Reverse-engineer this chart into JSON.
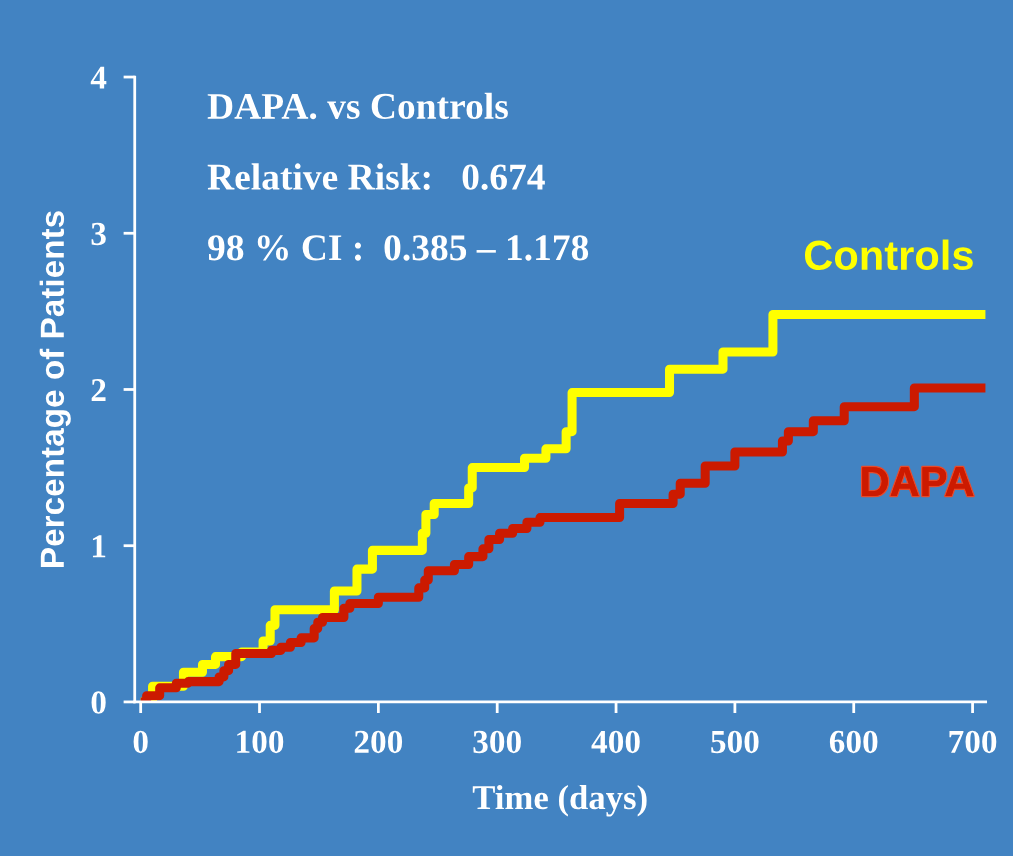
{
  "chart_data": {
    "type": "step",
    "xlabel": "Time (days)",
    "ylabel": "Percentage of Patients",
    "xlim": [
      -5,
      711
    ],
    "xticks": [
      0,
      100,
      200,
      300,
      400,
      500,
      600,
      700
    ],
    "ylim": [
      0,
      4
    ],
    "yticks": [
      0,
      1,
      2,
      3,
      4
    ],
    "grid": false,
    "legend": false,
    "marker": "none",
    "line_style": "solid",
    "annotations": [
      "DAPA. vs Controls",
      "Relative Risk:   0.674",
      "98 % CI :  0.385 – 1.178"
    ],
    "series": [
      {
        "name": "Controls",
        "color": "#ffff00",
        "x": [
          0,
          10,
          36,
          52,
          63,
          85,
          103,
          109,
          113,
          163,
          182,
          195,
          237,
          240,
          247,
          276,
          279,
          323,
          341,
          358,
          363,
          445,
          490,
          532,
          711
        ],
        "values": [
          0,
          0.1,
          0.19,
          0.24,
          0.29,
          0.32,
          0.39,
          0.49,
          0.59,
          0.71,
          0.85,
          0.97,
          1.08,
          1.2,
          1.27,
          1.37,
          1.5,
          1.56,
          1.62,
          1.73,
          1.98,
          2.13,
          2.24,
          2.48,
          2.48
        ]
      },
      {
        "name": "DAPA",
        "color": "#cc1a00",
        "x": [
          0,
          5,
          16,
          30,
          40,
          66,
          70,
          74,
          80,
          110,
          118,
          126,
          135,
          146,
          149,
          153,
          171,
          176,
          200,
          234,
          239,
          242,
          264,
          276,
          288,
          293,
          302,
          313,
          325,
          336,
          403,
          448,
          454,
          475,
          500,
          540,
          545,
          566,
          592,
          651,
          711
        ],
        "values": [
          0,
          0.04,
          0.09,
          0.12,
          0.13,
          0.16,
          0.2,
          0.24,
          0.31,
          0.33,
          0.35,
          0.38,
          0.41,
          0.47,
          0.51,
          0.54,
          0.6,
          0.63,
          0.67,
          0.73,
          0.78,
          0.84,
          0.88,
          0.93,
          0.98,
          1.04,
          1.08,
          1.11,
          1.15,
          1.18,
          1.27,
          1.33,
          1.4,
          1.51,
          1.6,
          1.67,
          1.73,
          1.8,
          1.89,
          2.01,
          2.01
        ]
      }
    ]
  }
}
